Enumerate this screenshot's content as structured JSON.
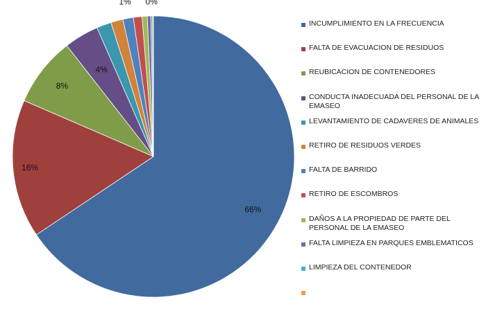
{
  "chart_data": {
    "type": "pie",
    "start_angle_deg": 0,
    "direction": "clockwise",
    "legend_position": "right",
    "slices": [
      {
        "label": "INCUMPLIMIENTO EN LA FRECUENCIA",
        "value": 66,
        "display": "66%",
        "color": "#416b9e"
      },
      {
        "label": "FALTA DE EVACUACION DE RESIDUOS",
        "value": 16,
        "display": "16%",
        "color": "#a0403d"
      },
      {
        "label": "REUBICACION DE CONTENEDORES",
        "value": 8,
        "display": "8%",
        "color": "#7f9c49"
      },
      {
        "label": "CONDUCTA INADECUADA DEL PERSONAL DE LA EMASEO",
        "value": 4,
        "display": "4%",
        "color": "#654e86"
      },
      {
        "label": "LEVANTAMIENTO DE CADAVERES DE ANIMALES",
        "value": 1.7,
        "display": "",
        "color": "#3a97ad"
      },
      {
        "label": "RETIRO DE RESIDUOS VERDES",
        "value": 1.4,
        "display": "",
        "color": "#d1823b"
      },
      {
        "label": "FALTA DE BARRIDO",
        "value": 1.2,
        "display": "1%",
        "color": "#4f81bd"
      },
      {
        "label": "RETIRO DE ESCOMBROS",
        "value": 1.0,
        "display": "",
        "color": "#c0504d"
      },
      {
        "label": "DAÑOS A LA PROPIEDAD DE PARTE DEL PERSONAL DE LA EMASEO",
        "value": 0.6,
        "display": "",
        "color": "#9bbb59"
      },
      {
        "label": "FALTA LIMPIEZA EN PARQUES EMBLEMATICOS",
        "value": 0.4,
        "display": "",
        "color": "#8064a2"
      },
      {
        "label": "LIMPIEZA DEL CONTENEDOR",
        "value": 0.2,
        "display": "0%",
        "color": "#4bacc6"
      },
      {
        "label": "",
        "value": 0.1,
        "display": "",
        "color": "#f79646"
      }
    ]
  }
}
